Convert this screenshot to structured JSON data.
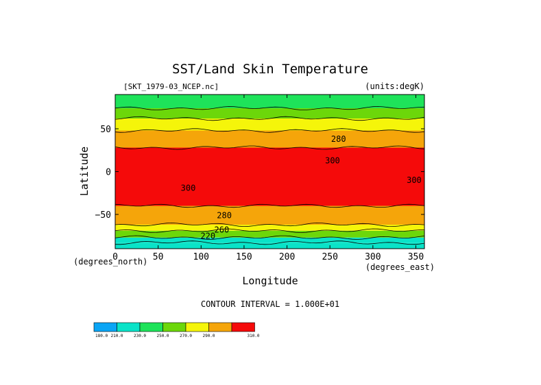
{
  "chart_data": {
    "type": "heatmap",
    "title": "SST/Land Skin Temperature",
    "dataset_label": "[SKT_1979-03_NCEP.nc]",
    "units_label": "(units:degK)",
    "xlabel": "Longitude",
    "ylabel": "Latitude",
    "x_units_label": "(degrees_east)",
    "y_units_label": "(degrees_north)",
    "xlim": [
      0,
      360
    ],
    "ylim": [
      -90,
      90
    ],
    "x_ticks": [
      0,
      50,
      100,
      150,
      200,
      250,
      300,
      350
    ],
    "y_ticks": [
      50,
      0,
      -50
    ],
    "contour_interval_text": "CONTOUR INTERVAL = 1.000E+01",
    "contour_interval": 10,
    "contour_labels": [
      {
        "text": "280",
        "lon": 260,
        "lat": 38
      },
      {
        "text": "300",
        "lon": 253,
        "lat": 13
      },
      {
        "text": "300",
        "lon": 348,
        "lat": -10
      },
      {
        "text": "300",
        "lon": 85,
        "lat": -19
      },
      {
        "text": "280",
        "lon": 127,
        "lat": -51
      },
      {
        "text": "260",
        "lon": 124,
        "lat": -68
      },
      {
        "text": "220",
        "lon": 108,
        "lat": -75
      }
    ],
    "bands": [
      {
        "from": -90,
        "to": -83,
        "value": 230
      },
      {
        "from": -83,
        "to": -77,
        "value": 240
      },
      {
        "from": -77,
        "to": -69,
        "value": 260
      },
      {
        "from": -69,
        "to": -62,
        "value": 270
      },
      {
        "from": -62,
        "to": -40,
        "value": 280
      },
      {
        "from": -40,
        "to": 28,
        "value": 300
      },
      {
        "from": 28,
        "to": 48,
        "value": 280
      },
      {
        "from": 48,
        "to": 62,
        "value": 270
      },
      {
        "from": 62,
        "to": 74,
        "value": 260
      },
      {
        "from": 74,
        "to": 90,
        "value": 250
      }
    ],
    "colorbar": {
      "ticks": [
        "180.0",
        "210.0",
        "230.0",
        "250.0",
        "270.0",
        "290.0",
        "310.0"
      ],
      "colors": [
        "#0aa5f5",
        "#0ae3c8",
        "#1ee35a",
        "#6cd70a",
        "#f5f50a",
        "#f5a50a",
        "#f50a0a"
      ]
    },
    "level_colors": [
      {
        "max": 225,
        "color": "#0aa5f5"
      },
      {
        "max": 245,
        "color": "#0ae3c8"
      },
      {
        "max": 255,
        "color": "#1ee35a"
      },
      {
        "max": 265,
        "color": "#6cd70a"
      },
      {
        "max": 275,
        "color": "#f5f50a"
      },
      {
        "max": 290,
        "color": "#f5a50a"
      },
      {
        "max": 999,
        "color": "#f50a0a"
      }
    ]
  }
}
